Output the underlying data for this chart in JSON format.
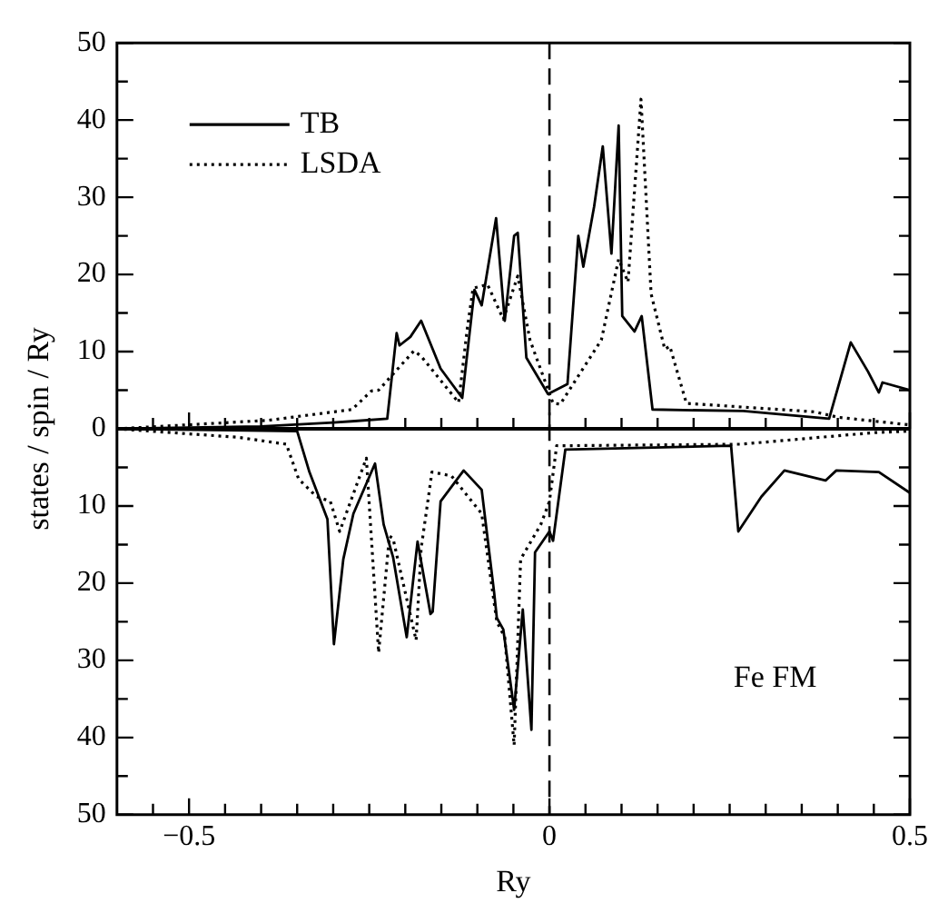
{
  "chart_data": {
    "type": "line",
    "xlabel": "Ry",
    "ylabel": "states / spin / Ry",
    "annotations": [
      "Fe FM"
    ],
    "legend": "top left",
    "grid": false,
    "xlim": [
      -0.6,
      0.5
    ],
    "xticks": [
      {
        "value": -0.55,
        "label": null
      },
      {
        "value": -0.5,
        "label": "−0.5"
      },
      {
        "value": -0.45,
        "label": null
      },
      {
        "value": -0.4,
        "label": null
      },
      {
        "value": -0.35,
        "label": null
      },
      {
        "value": -0.3,
        "label": null
      },
      {
        "value": -0.25,
        "label": null
      },
      {
        "value": -0.2,
        "label": null
      },
      {
        "value": -0.15,
        "label": null
      },
      {
        "value": -0.1,
        "label": null
      },
      {
        "value": -0.05,
        "label": null
      },
      0,
      {
        "value": 0.05,
        "label": null
      },
      {
        "value": 0.1,
        "label": null
      },
      {
        "value": 0.15,
        "label": null
      },
      {
        "value": 0.2,
        "label": null
      },
      {
        "value": 0.25,
        "label": null
      },
      {
        "value": 0.3,
        "label": null
      },
      {
        "value": 0.35,
        "label": null
      },
      {
        "value": 0.4,
        "label": null
      },
      {
        "value": 0.45,
        "label": null
      },
      0.5
    ],
    "ylim": [
      -50,
      50
    ],
    "yticks": [
      {
        "value": -50,
        "label": "50"
      },
      {
        "value": -45,
        "label": null
      },
      {
        "value": -40,
        "label": "40"
      },
      {
        "value": -35,
        "label": null
      },
      {
        "value": -30,
        "label": "30"
      },
      {
        "value": -25,
        "label": null
      },
      {
        "value": -20,
        "label": "20"
      },
      {
        "value": -15,
        "label": null
      },
      {
        "value": -10,
        "label": "10"
      },
      {
        "value": -5,
        "label": null
      },
      0,
      {
        "value": 5,
        "label": null
      },
      10,
      {
        "value": 15,
        "label": null
      },
      20,
      {
        "value": 25,
        "label": null
      },
      30,
      {
        "value": 35,
        "label": null
      },
      40,
      {
        "value": 45,
        "label": null
      },
      50
    ],
    "ref_lines": [
      {
        "axis": "x",
        "value": 0,
        "label": null,
        "line_style": "dashed",
        "color": "#000000"
      },
      {
        "axis": "y",
        "value": 0,
        "label": null,
        "line_style": "solid",
        "color": "#000000"
      }
    ],
    "series": [
      {
        "name": "TB",
        "color": "#000000",
        "line_style": "solid",
        "x": [
          -0.6,
          -0.4,
          -0.3,
          -0.27,
          -0.225,
          -0.212,
          -0.208,
          -0.193,
          -0.178,
          -0.151,
          -0.121,
          -0.104,
          -0.094,
          -0.074,
          -0.062,
          -0.049,
          -0.044,
          -0.032,
          -0.002,
          0.025,
          0.04,
          0.047,
          0.062,
          0.074,
          0.086,
          0.096,
          0.101,
          0.118,
          0.128,
          0.143,
          0.269,
          0.388,
          0.418,
          0.442,
          0.457,
          0.462,
          0.5
        ],
        "values": [
          0,
          0.3,
          0.8,
          1,
          1.3,
          12.4,
          10.8,
          11.9,
          14,
          7.8,
          4,
          18,
          16,
          27.3,
          14,
          25,
          25.4,
          9.2,
          4.5,
          5.8,
          25,
          21,
          28.8,
          36.6,
          22.7,
          39.3,
          14.6,
          12.6,
          14.6,
          2.5,
          2.3,
          1.3,
          11.2,
          7.4,
          4.7,
          6,
          5
        ]
      },
      {
        "color": "#000000",
        "line_style": "solid",
        "x": [
          -0.6,
          -0.35,
          -0.333,
          -0.308,
          -0.299,
          -0.286,
          -0.272,
          -0.242,
          -0.23,
          -0.217,
          -0.198,
          -0.183,
          -0.165,
          -0.162,
          -0.151,
          -0.119,
          -0.094,
          -0.077,
          -0.073,
          -0.064,
          -0.049,
          -0.037,
          -0.025,
          -0.02,
          0,
          0.005,
          0.022,
          0.252,
          0.262,
          0.294,
          0.326,
          0.383,
          0.398,
          0.457,
          0.5
        ],
        "values": [
          0,
          -0.3,
          -5.6,
          -11.7,
          -27.9,
          -16.9,
          -11,
          -4.5,
          -12.4,
          -16.6,
          -27,
          -14.6,
          -24,
          -23.7,
          -9.4,
          -5.4,
          -7.9,
          -21,
          -24.5,
          -26,
          -36.4,
          -23.4,
          -39,
          -16,
          -13.3,
          -14.5,
          -2.7,
          -2.2,
          -13.3,
          -8.8,
          -5.4,
          -6.7,
          -5.4,
          -5.6,
          -8.3
        ]
      },
      {
        "name": "LSDA",
        "color": "#000000",
        "line_style": "dotted",
        "x": [
          -0.6,
          -0.39,
          -0.274,
          -0.247,
          -0.237,
          -0.188,
          -0.178,
          -0.126,
          -0.114,
          -0.106,
          -0.086,
          -0.064,
          -0.044,
          -0.027,
          0.005,
          0.015,
          0.072,
          0.096,
          0.109,
          0.127,
          0.141,
          0.16,
          0.167,
          0.19,
          0.368,
          0.4,
          0.5
        ],
        "values": [
          0,
          1.1,
          2.5,
          4.9,
          5,
          10.1,
          9.4,
          3.4,
          13,
          18.2,
          18.7,
          14.2,
          19.8,
          11.5,
          3.3,
          3.2,
          11.5,
          22,
          19,
          42.7,
          17.5,
          10.3,
          10.7,
          3.3,
          2.2,
          1.5,
          0.5
        ]
      },
      {
        "color": "#000000",
        "line_style": "dotted",
        "x": [
          -0.6,
          -0.432,
          -0.365,
          -0.348,
          -0.323,
          -0.304,
          -0.291,
          -0.254,
          -0.237,
          -0.222,
          -0.217,
          -0.185,
          -0.178,
          -0.163,
          -0.136,
          -0.094,
          -0.073,
          -0.062,
          -0.049,
          -0.04,
          -0.012,
          0,
          0.01,
          0.265,
          0.45,
          0.5
        ],
        "values": [
          0,
          -1.1,
          -2,
          -6.5,
          -8.8,
          -9.4,
          -13.3,
          -3.8,
          -29,
          -13.9,
          -14.2,
          -27.4,
          -15.5,
          -5.6,
          -6.1,
          -11,
          -25,
          -27,
          -41,
          -16.9,
          -12.4,
          -9.4,
          -2.2,
          -2,
          -0.5,
          -0.3
        ]
      }
    ]
  }
}
